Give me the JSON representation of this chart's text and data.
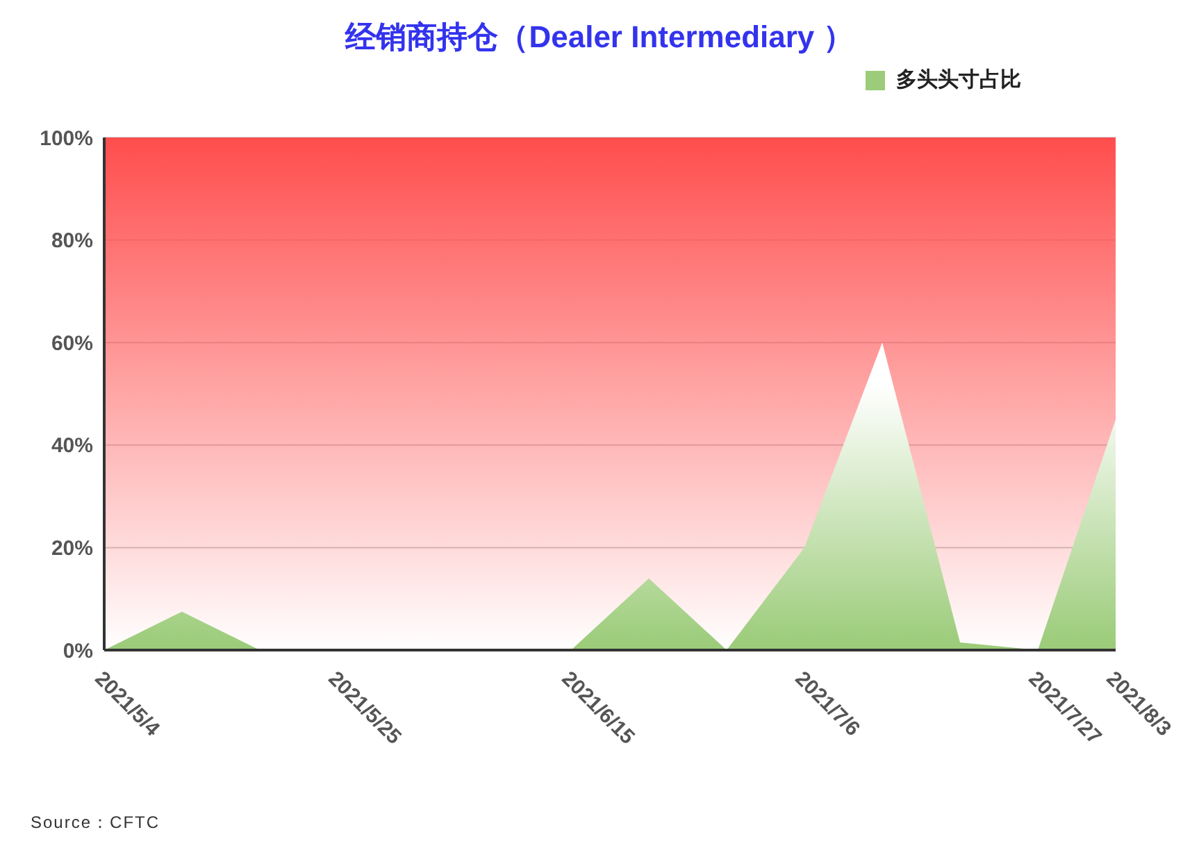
{
  "chart_data": {
    "type": "area",
    "title": "经销商持仓（Dealer Intermediary ）",
    "categories": [
      "2021/5/4",
      null,
      null,
      "2021/5/25",
      null,
      null,
      "2021/6/15",
      null,
      null,
      "2021/7/6",
      null,
      null,
      "2021/7/27",
      "2021/8/3"
    ],
    "series": [
      {
        "name": "多头头寸占比",
        "color": "#9ccc7a",
        "values": [
          0,
          7.5,
          0,
          0,
          0,
          0,
          0,
          14,
          0,
          20,
          60,
          1.5,
          0,
          45
        ]
      }
    ],
    "ylim": [
      0,
      100
    ],
    "yticks": [
      {
        "value": 0,
        "label": "0%"
      },
      {
        "value": 20,
        "label": "20%"
      },
      {
        "value": 40,
        "label": "40%"
      },
      {
        "value": 60,
        "label": "60%"
      },
      {
        "value": 80,
        "label": "80%"
      },
      {
        "value": 100,
        "label": "100%"
      }
    ],
    "bands": [
      {
        "axis": "y",
        "from": 0,
        "to": 100,
        "color": "#ff4d4d"
      }
    ],
    "grid": "y",
    "legend": "top right",
    "annotations": [
      "Source：CFTC"
    ]
  }
}
